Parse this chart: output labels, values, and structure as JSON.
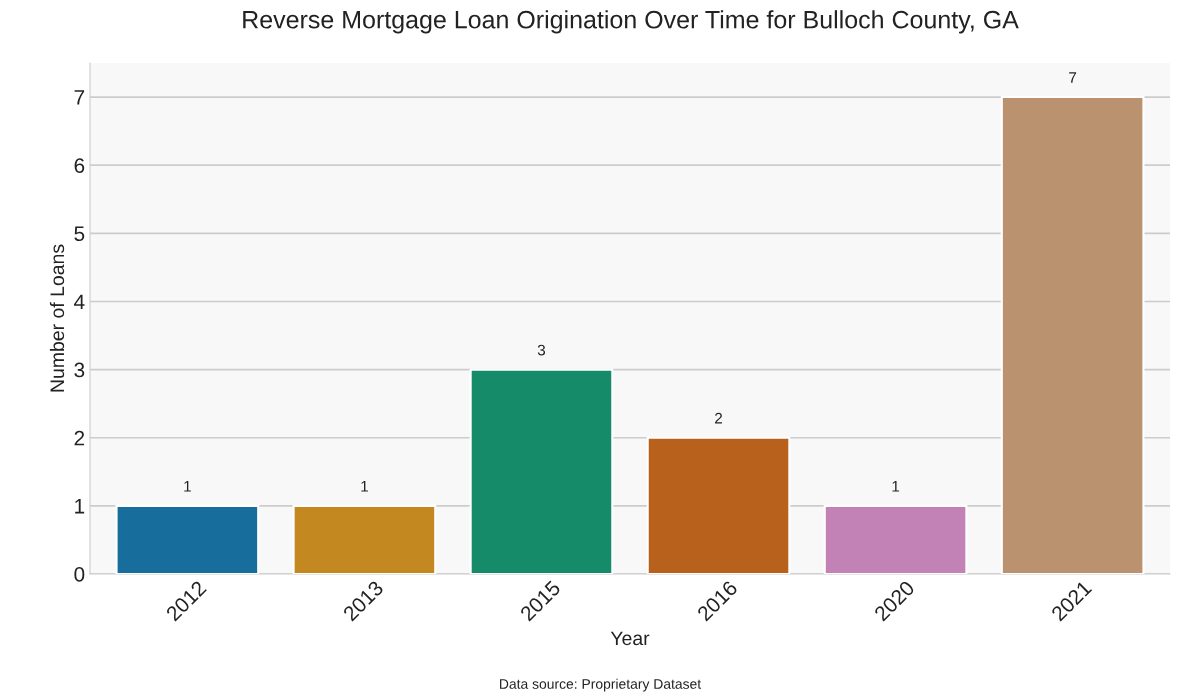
{
  "chart_data": {
    "type": "bar",
    "title": "Reverse Mortgage Loan Origination Over Time for Bulloch County, GA",
    "xlabel": "Year",
    "ylabel": "Number of Loans",
    "categories": [
      "2012",
      "2013",
      "2015",
      "2016",
      "2020",
      "2021"
    ],
    "values": [
      1,
      1,
      3,
      2,
      1,
      7
    ],
    "colors": [
      "#176d9c",
      "#c38820",
      "#158b6a",
      "#b8611d",
      "#c282b5",
      "#bb9270"
    ],
    "ylim": [
      0,
      7.5
    ],
    "yticks": [
      0,
      1,
      2,
      3,
      4,
      5,
      6,
      7
    ],
    "grid": "y",
    "data_labels": true,
    "annotations": [
      "Data source: Proprietary Dataset"
    ]
  }
}
